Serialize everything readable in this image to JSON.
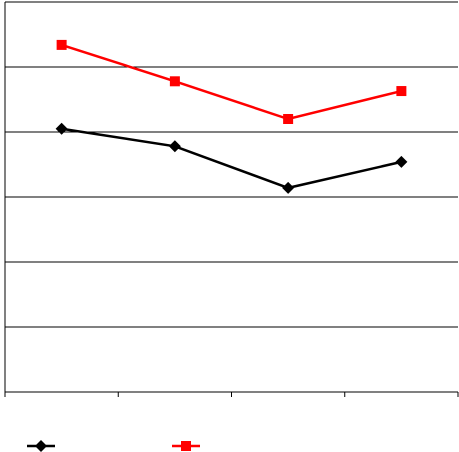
{
  "chart_data": {
    "type": "line",
    "categories": [
      null,
      null,
      null,
      null
    ],
    "series": [
      {
        "color": "#000000",
        "marker": "diamond",
        "values": [
          4.05,
          3.78,
          3.14,
          3.54
        ]
      },
      {
        "color": "#ff0000",
        "marker": "square",
        "values": [
          5.34,
          4.78,
          4.2,
          4.63
        ]
      }
    ],
    "ylim": [
      0,
      6
    ],
    "yticks": [
      0,
      1,
      2,
      3,
      4,
      5,
      6
    ],
    "grid": true,
    "legend": "bottom"
  }
}
